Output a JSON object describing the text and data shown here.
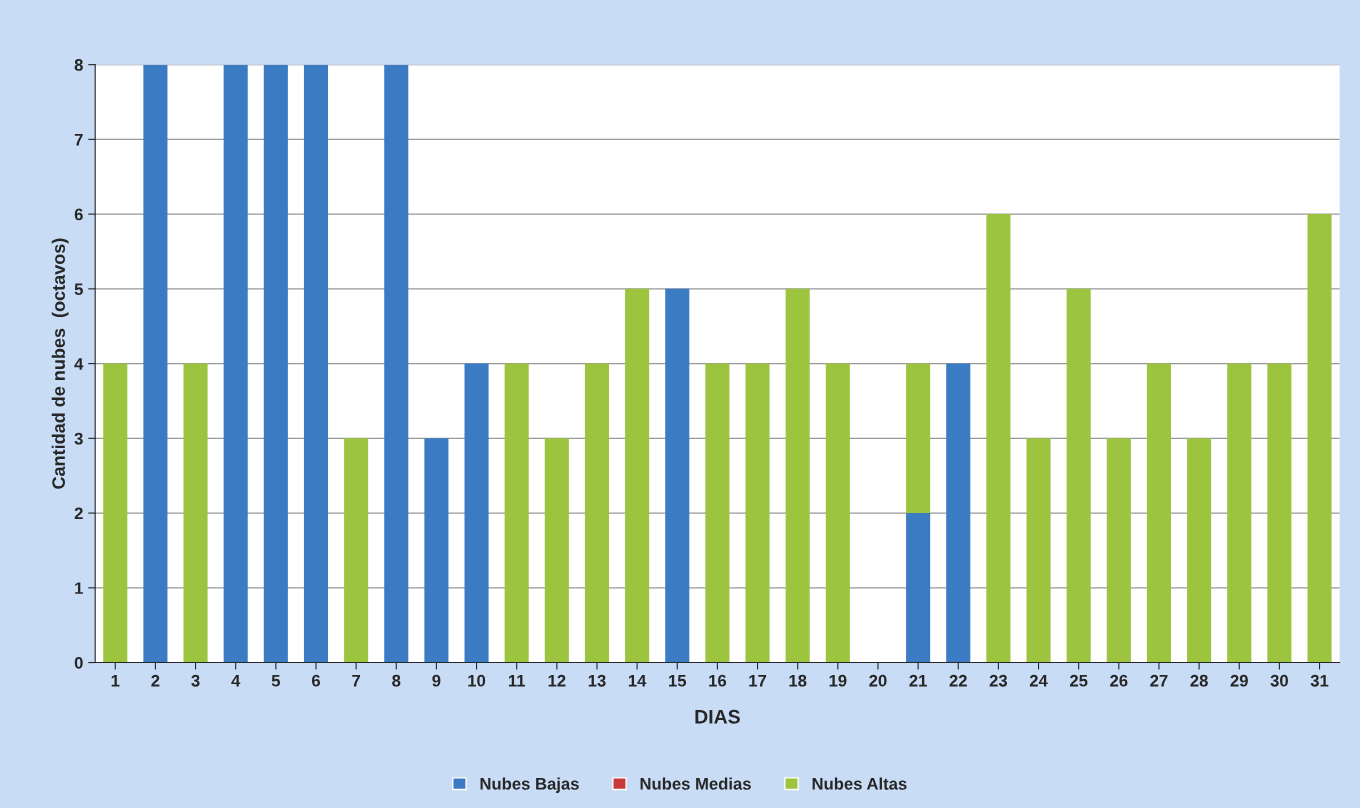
{
  "chart_data": {
    "type": "bar",
    "stacked": true,
    "xlabel": "DIAS",
    "ylabel": "Cantidad de nubes  (octavos)",
    "categories": [
      "1",
      "2",
      "3",
      "4",
      "5",
      "6",
      "7",
      "8",
      "9",
      "10",
      "11",
      "12",
      "13",
      "14",
      "15",
      "16",
      "17",
      "18",
      "19",
      "20",
      "21",
      "22",
      "23",
      "24",
      "25",
      "26",
      "27",
      "28",
      "29",
      "30",
      "31"
    ],
    "series": [
      {
        "name": "Nubes Bajas",
        "color": "#3b7bc4",
        "values": [
          0,
          8,
          0,
          8,
          8,
          8,
          0,
          8,
          3,
          4,
          0,
          0,
          0,
          0,
          5,
          0,
          0,
          0,
          0,
          0,
          2,
          4,
          0,
          0,
          0,
          0,
          0,
          0,
          0,
          0,
          0
        ]
      },
      {
        "name": "Nubes Medias",
        "color": "#c63a3a",
        "values": [
          0,
          0,
          0,
          0,
          0,
          0,
          0,
          0,
          0,
          0,
          0,
          0,
          0,
          0,
          0,
          0,
          0,
          0,
          0,
          0,
          0,
          0,
          0,
          0,
          0,
          0,
          0,
          0,
          0,
          0,
          0
        ]
      },
      {
        "name": "Nubes Altas",
        "color": "#9cc43e",
        "values": [
          4,
          0,
          4,
          0,
          0,
          0,
          3,
          0,
          0,
          0,
          4,
          3,
          4,
          5,
          0,
          4,
          4,
          5,
          4,
          0,
          2,
          0,
          6,
          3,
          5,
          3,
          4,
          3,
          4,
          4,
          6
        ]
      }
    ],
    "ylim": [
      0,
      8
    ],
    "yticks": [
      0,
      1,
      2,
      3,
      4,
      5,
      6,
      7,
      8
    ],
    "grid": "y",
    "legend": "bottom"
  }
}
